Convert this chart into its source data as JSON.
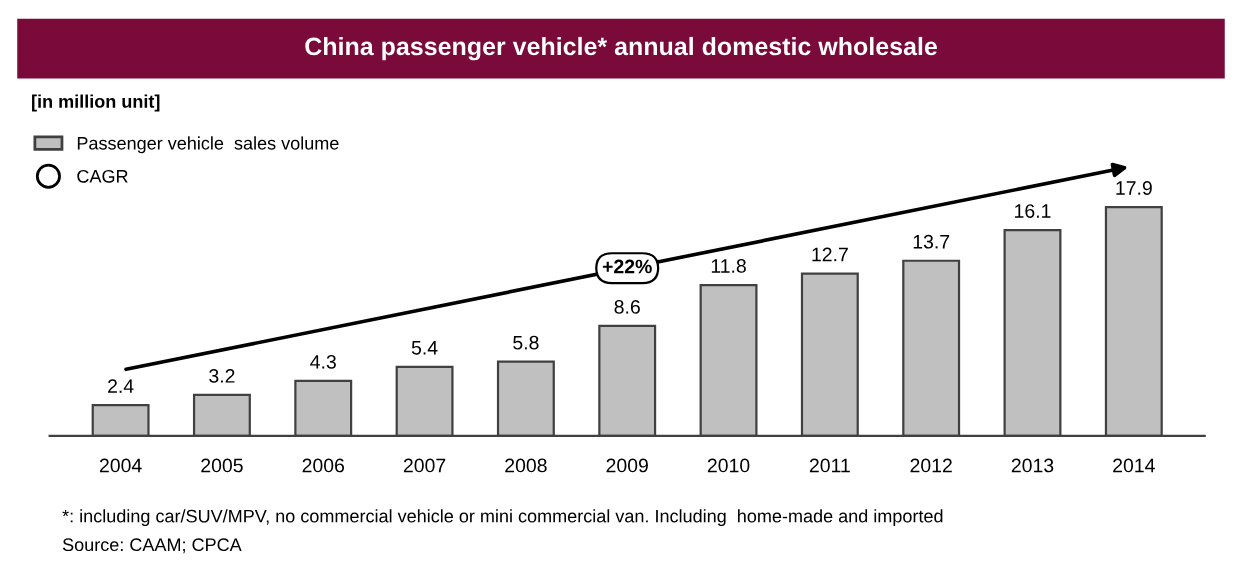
{
  "chart_data": {
    "type": "bar",
    "title": "China passenger vehicle* annual domestic wholesale",
    "subtitle": "[in million unit]",
    "categories": [
      "2004",
      "2005",
      "2006",
      "2007",
      "2008",
      "2009",
      "2010",
      "2011",
      "2012",
      "2013",
      "2014"
    ],
    "series": [
      {
        "name": "Passenger vehicle  sales volume",
        "color": "#c0c0c0",
        "values": [
          2.4,
          3.2,
          4.3,
          5.4,
          5.8,
          8.6,
          11.8,
          12.7,
          13.7,
          16.1,
          17.9
        ]
      }
    ],
    "data_labels": true,
    "legend": "top left",
    "annotations": [
      "CAGR",
      "+22%",
      "*: including car/SUV/MPV, no commercial vehicle or mini commercial van. Including  home-made and imported",
      "Source: CAAM; CPCA"
    ]
  }
}
